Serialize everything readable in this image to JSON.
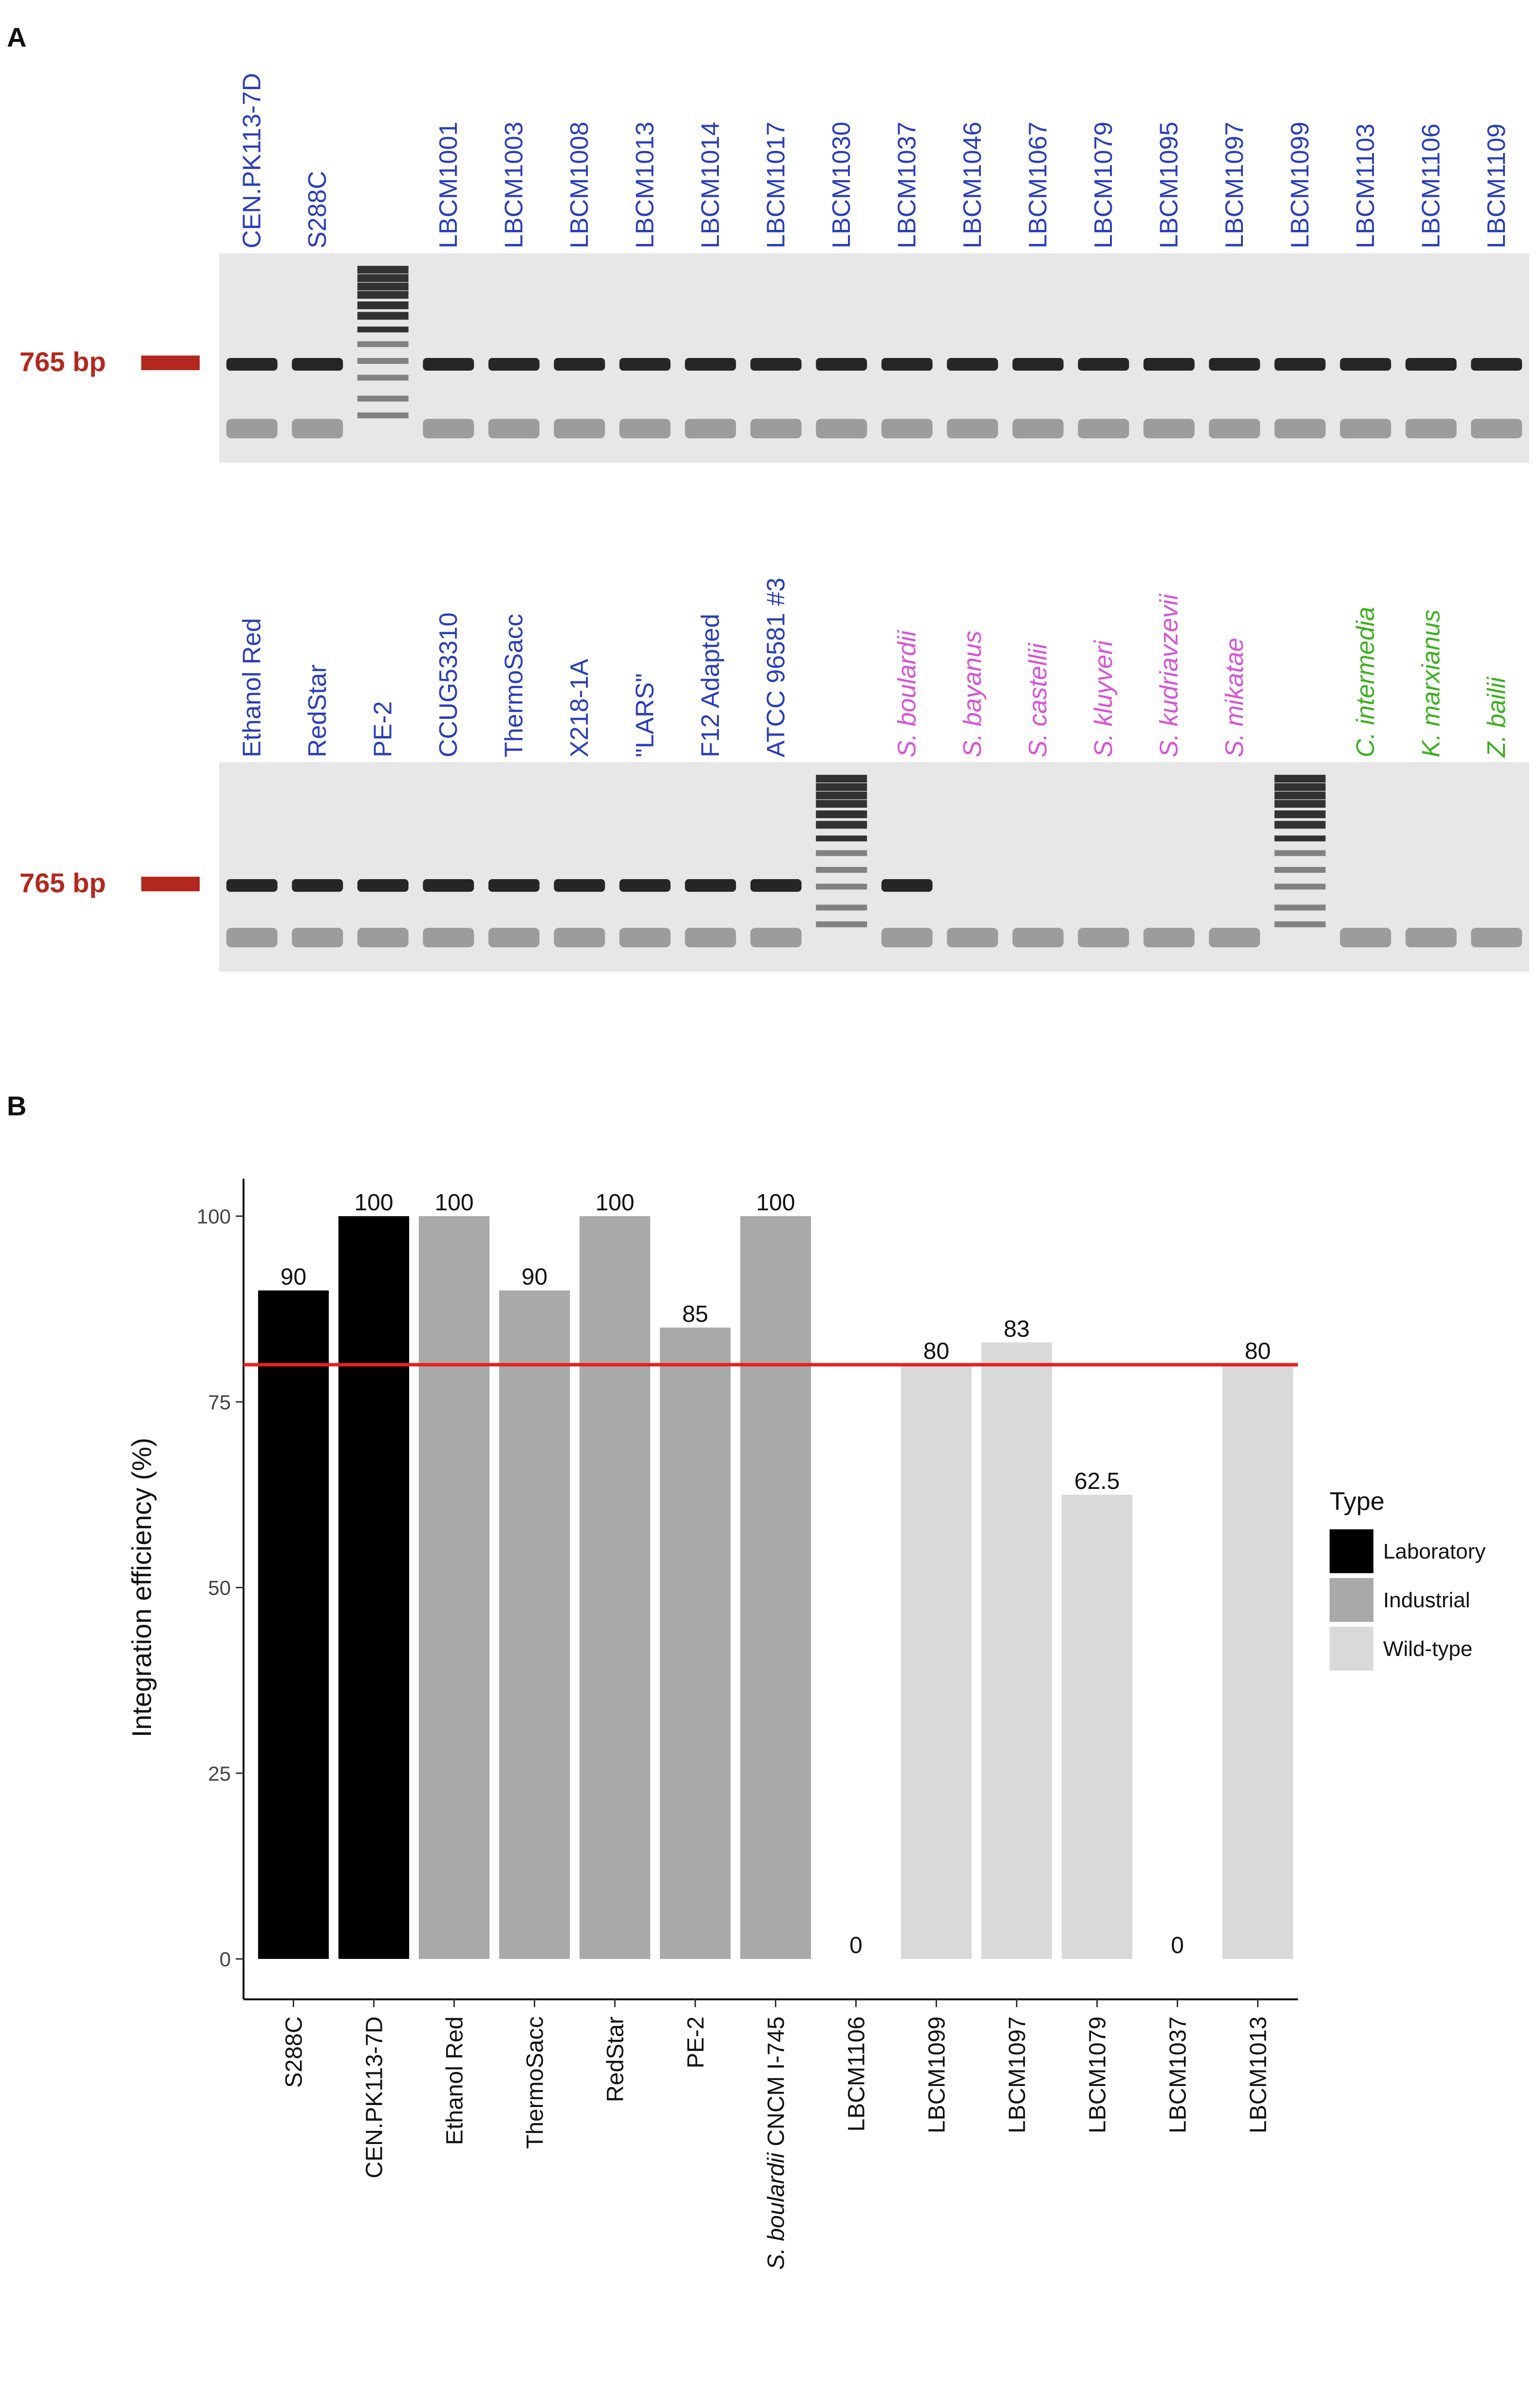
{
  "panel_a": {
    "letter": "A",
    "marker_label": "765 bp",
    "gel_top": {
      "lanes": [
        {
          "label": "CEN.PK113-7D",
          "band": true,
          "ladder": false,
          "color": "#2a3eb8"
        },
        {
          "label": "S288C",
          "band": true,
          "ladder": false,
          "color": "#2a3eb8"
        },
        {
          "label": "",
          "band": false,
          "ladder": true,
          "color": "#2a3eb8"
        },
        {
          "label": "LBCM1001",
          "band": true,
          "ladder": false,
          "color": "#2a3eb8"
        },
        {
          "label": "LBCM1003",
          "band": true,
          "ladder": false,
          "color": "#2a3eb8"
        },
        {
          "label": "LBCM1008",
          "band": true,
          "ladder": false,
          "color": "#2a3eb8"
        },
        {
          "label": "LBCM1013",
          "band": true,
          "ladder": false,
          "color": "#2a3eb8"
        },
        {
          "label": "LBCM1014",
          "band": true,
          "ladder": false,
          "color": "#2a3eb8"
        },
        {
          "label": "LBCM1017",
          "band": true,
          "ladder": false,
          "color": "#2a3eb8"
        },
        {
          "label": "LBCM1030",
          "band": true,
          "ladder": false,
          "color": "#2a3eb8"
        },
        {
          "label": "LBCM1037",
          "band": true,
          "ladder": false,
          "color": "#2a3eb8"
        },
        {
          "label": "LBCM1046",
          "band": true,
          "ladder": false,
          "color": "#2a3eb8"
        },
        {
          "label": "LBCM1067",
          "band": true,
          "ladder": false,
          "color": "#2a3eb8"
        },
        {
          "label": "LBCM1079",
          "band": true,
          "ladder": false,
          "color": "#2a3eb8"
        },
        {
          "label": "LBCM1095",
          "band": true,
          "ladder": false,
          "color": "#2a3eb8"
        },
        {
          "label": "LBCM1097",
          "band": true,
          "ladder": false,
          "color": "#2a3eb8"
        },
        {
          "label": "LBCM1099",
          "band": true,
          "ladder": false,
          "color": "#2a3eb8"
        },
        {
          "label": "LBCM1103",
          "band": true,
          "ladder": false,
          "color": "#2a3eb8"
        },
        {
          "label": "LBCM1106",
          "band": true,
          "ladder": false,
          "color": "#2a3eb8"
        },
        {
          "label": "LBCM1109",
          "band": true,
          "ladder": false,
          "color": "#2a3eb8"
        }
      ]
    },
    "gel_bottom": {
      "lanes": [
        {
          "label": "Ethanol Red",
          "band": true,
          "ladder": false,
          "italic": false,
          "color": "#2a3eb8"
        },
        {
          "label": "RedStar",
          "band": true,
          "ladder": false,
          "italic": false,
          "color": "#2a3eb8"
        },
        {
          "label": "PE-2",
          "band": true,
          "ladder": false,
          "italic": false,
          "color": "#2a3eb8"
        },
        {
          "label": "CCUG53310",
          "band": true,
          "ladder": false,
          "italic": false,
          "color": "#2a3eb8"
        },
        {
          "label": "ThermoSacc",
          "band": true,
          "ladder": false,
          "italic": false,
          "color": "#2a3eb8"
        },
        {
          "label": "X218-1A",
          "band": true,
          "ladder": false,
          "italic": false,
          "color": "#2a3eb8"
        },
        {
          "label": "\"LARS\"",
          "band": true,
          "ladder": false,
          "italic": false,
          "color": "#2a3eb8"
        },
        {
          "label": "F12 Adapted",
          "band": true,
          "ladder": false,
          "italic": false,
          "color": "#2a3eb8"
        },
        {
          "label": "ATCC 96581 #3",
          "band": true,
          "ladder": false,
          "italic": false,
          "color": "#2a3eb8"
        },
        {
          "label": "",
          "band": false,
          "ladder": true,
          "italic": false,
          "color": "#2a3eb8"
        },
        {
          "label": "S. boulardii",
          "band": true,
          "ladder": false,
          "italic": true,
          "color": "#d653d6"
        },
        {
          "label": "S. bayanus",
          "band": false,
          "ladder": false,
          "italic": true,
          "color": "#d653d6"
        },
        {
          "label": "S. castellii",
          "band": false,
          "ladder": false,
          "italic": true,
          "color": "#d653d6"
        },
        {
          "label": "S. kluyveri",
          "band": false,
          "ladder": false,
          "italic": true,
          "color": "#d653d6"
        },
        {
          "label": "S. kudriavzevii",
          "band": false,
          "ladder": false,
          "italic": true,
          "color": "#d653d6"
        },
        {
          "label": "S. mikatae",
          "band": false,
          "ladder": false,
          "italic": true,
          "color": "#d653d6"
        },
        {
          "label": "",
          "band": false,
          "ladder": true,
          "italic": false,
          "color": "#2a3eb8"
        },
        {
          "label": "C. intermedia",
          "band": false,
          "ladder": false,
          "italic": true,
          "color": "#3cb01e"
        },
        {
          "label": "K. marxianus",
          "band": false,
          "ladder": false,
          "italic": true,
          "color": "#3cb01e"
        },
        {
          "label": "Z. bailii",
          "band": false,
          "ladder": false,
          "italic": true,
          "color": "#3cb01e"
        }
      ]
    },
    "colors": {
      "marker": "#b3281e"
    }
  },
  "panel_b": {
    "letter": "B"
  },
  "chart_data": {
    "type": "bar",
    "title": "",
    "xlabel": "",
    "ylabel": "Integration efficiency (%)",
    "ylim": [
      0,
      100
    ],
    "yticks": [
      0,
      25,
      50,
      75,
      100
    ],
    "threshold": 80,
    "threshold_color": "#e8201c",
    "categories": [
      "S288C",
      "CEN.PK113-7D",
      "Ethanol Red",
      "ThermoSacc",
      "RedStar",
      "PE-2",
      "S. boulardii CNCM I-745",
      "LBCM1106",
      "LBCM1099",
      "LBCM1097",
      "LBCM1079",
      "LBCM1037",
      "LBCM1013"
    ],
    "category_italic_prefix": {
      "S. boulardii CNCM I-745": "S. boulardii"
    },
    "values": [
      90,
      100,
      100,
      90,
      100,
      85,
      100,
      0,
      80,
      83,
      62.5,
      0,
      80
    ],
    "types": [
      "Laboratory",
      "Laboratory",
      "Industrial",
      "Industrial",
      "Industrial",
      "Industrial",
      "Industrial",
      "Wild-type",
      "Wild-type",
      "Wild-type",
      "Wild-type",
      "Wild-type",
      "Wild-type"
    ],
    "legend": {
      "title": "Type",
      "position": "right",
      "entries": [
        {
          "name": "Laboratory",
          "color": "#000000"
        },
        {
          "name": "Industrial",
          "color": "#a9a9a9"
        },
        {
          "name": "Wild-type",
          "color": "#d9d9d9"
        }
      ]
    }
  }
}
